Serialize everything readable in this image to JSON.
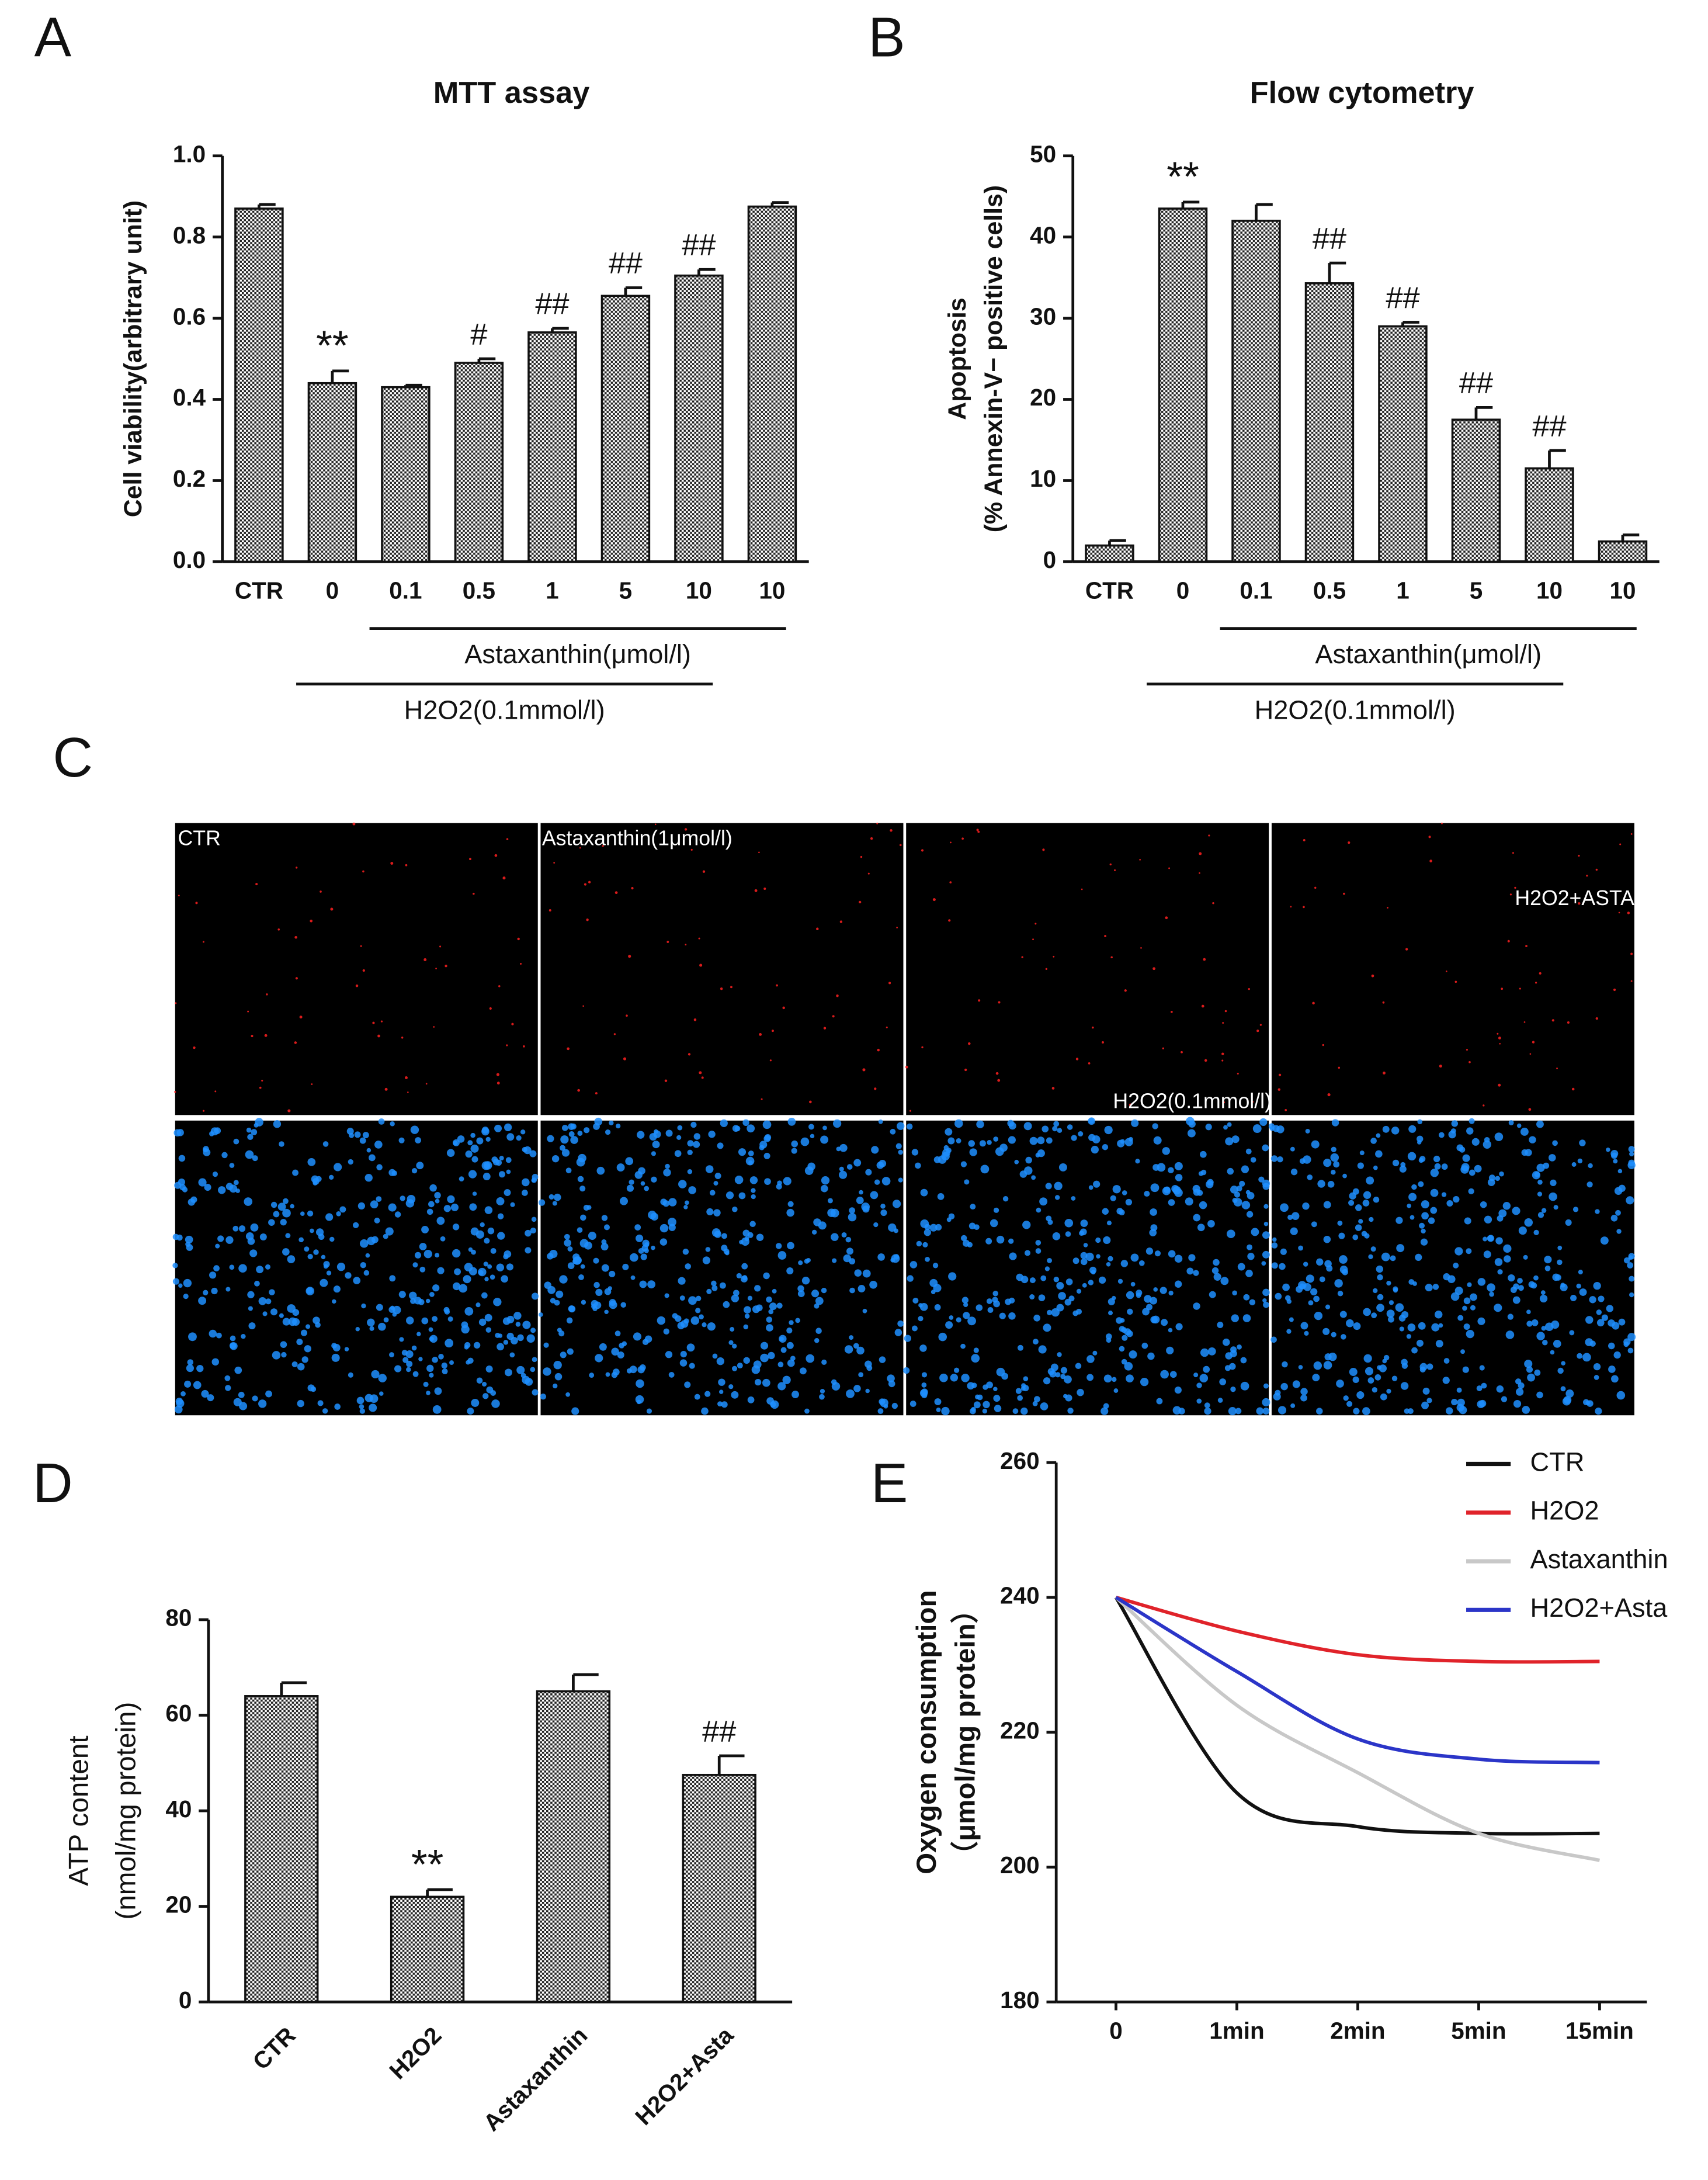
{
  "chart_data": [
    {
      "type": "bar",
      "panel": "A",
      "title": "MTT assay",
      "ylabel": [
        "Cell viability(arbitrary unit)"
      ],
      "categories": [
        "CTR",
        "0",
        "0.1",
        "0.5",
        "1",
        "5",
        "10",
        "10"
      ],
      "values": [
        0.87,
        0.44,
        0.43,
        0.49,
        0.565,
        0.655,
        0.705,
        0.875
      ],
      "errors": [
        0.01,
        0.03,
        0.005,
        0.01,
        0.01,
        0.02,
        0.015,
        0.01
      ],
      "annotations": [
        {
          "index": 1,
          "text": "**"
        },
        {
          "index": 3,
          "text": "#"
        },
        {
          "index": 4,
          "text": "##"
        },
        {
          "index": 5,
          "text": "##"
        },
        {
          "index": 6,
          "text": "##"
        }
      ],
      "groups": [
        {
          "label": "Astaxanthin(μmol/l)",
          "from": 2,
          "to": 7
        },
        {
          "label": "H2O2(0.1mmol/l)",
          "from": 1,
          "to": 6
        }
      ],
      "ylim": [
        0,
        1
      ],
      "yticks": [
        {
          "value": 0,
          "label": "0.0"
        },
        {
          "value": 0.2,
          "label": "0.2"
        },
        {
          "value": 0.4,
          "label": "0.4"
        },
        {
          "value": 0.6,
          "label": "0.6"
        },
        {
          "value": 0.8,
          "label": "0.8"
        },
        {
          "value": 1,
          "label": "1.0"
        }
      ]
    },
    {
      "type": "bar",
      "panel": "B",
      "title": "Flow cytometry",
      "ylabel": [
        "Apoptosis",
        "(% Annexin-V− positive cells)"
      ],
      "categories": [
        "CTR",
        "0",
        "0.1",
        "0.5",
        "1",
        "5",
        "10",
        "10"
      ],
      "values": [
        2,
        43.5,
        42,
        34.3,
        29,
        17.5,
        11.5,
        2.5
      ],
      "errors": [
        0.6,
        0.8,
        2,
        2.5,
        0.5,
        1.5,
        2.2,
        0.8
      ],
      "annotations": [
        {
          "index": 1,
          "text": "**"
        },
        {
          "index": 3,
          "text": "##"
        },
        {
          "index": 4,
          "text": "##"
        },
        {
          "index": 5,
          "text": "##"
        },
        {
          "index": 6,
          "text": "##"
        }
      ],
      "groups": [
        {
          "label": "Astaxanthin(μmol/l)",
          "from": 2,
          "to": 7
        },
        {
          "label": "H2O2(0.1mmol/l)",
          "from": 1,
          "to": 6
        }
      ],
      "ylim": [
        0,
        50
      ],
      "yticks": [
        0,
        10,
        20,
        30,
        40,
        50
      ]
    },
    {
      "type": "bar",
      "panel": "D",
      "ylabel": [
        "ATP content",
        "(nmol/mg protein)"
      ],
      "categories": [
        "CTR",
        "H2O2",
        "Astaxanthin",
        "H2O2+Asta"
      ],
      "values": [
        64,
        22,
        65,
        47.5
      ],
      "errors": [
        2.8,
        1.5,
        3.5,
        4
      ],
      "annotations": [
        {
          "index": 1,
          "text": "**"
        },
        {
          "index": 3,
          "text": "##"
        }
      ],
      "ylim": [
        0,
        80
      ],
      "yticks": [
        0,
        20,
        40,
        60,
        80
      ]
    },
    {
      "type": "line",
      "panel": "E",
      "ylabel": [
        "Oxygen consumption",
        "（μmol/mg protein）"
      ],
      "categories": [
        "0",
        "1min",
        "2min",
        "5min",
        "15min"
      ],
      "series": [
        {
          "name": "CTR",
          "color": "#111111",
          "values": [
            240,
            211,
            206,
            205,
            205
          ]
        },
        {
          "name": "H2O2",
          "color": "#e0232a",
          "values": [
            240,
            235,
            231.5,
            230.5,
            230.5
          ]
        },
        {
          "name": "Astaxanthin",
          "color": "#c8c8c8",
          "values": [
            240,
            224,
            214,
            205,
            201
          ]
        },
        {
          "name": "H2O2+Asta",
          "color": "#2b35c8",
          "values": [
            240,
            229,
            219,
            216,
            215.5
          ]
        }
      ],
      "legend": "top-right",
      "ylim": [
        180,
        260
      ],
      "yticks": [
        180,
        200,
        220,
        240,
        260
      ]
    }
  ],
  "images": {
    "panel": "C",
    "labels": [
      "CTR",
      "Astaxanthin(1μmol/l)",
      "H2O2(0.1mmol/l)",
      "H2O2+ASTA"
    ]
  }
}
